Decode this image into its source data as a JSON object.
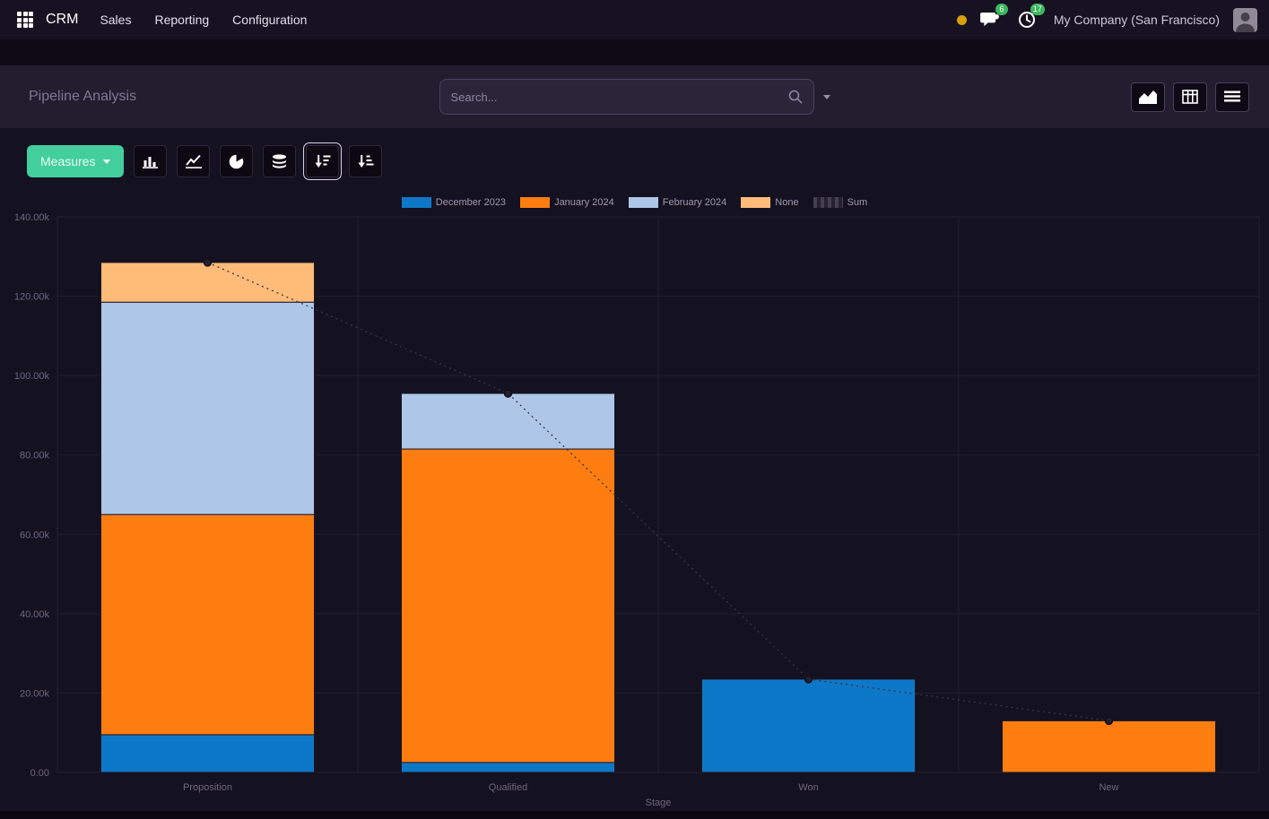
{
  "navbar": {
    "brand": "CRM",
    "menu_items": [
      "Sales",
      "Reporting",
      "Configuration"
    ],
    "messages_badge": "6",
    "activities_badge": "17",
    "company": "My Company (San Francisco)"
  },
  "control_panel": {
    "title": "Pipeline Analysis",
    "search_placeholder": "Search...",
    "view_switchers": [
      "graph",
      "pivot",
      "list"
    ]
  },
  "toolbar": {
    "measures_label": "Measures",
    "buttons": [
      "bar-chart",
      "line-chart",
      "pie-chart",
      "stacked",
      "sort-descending",
      "sort-ascending"
    ],
    "active_button": "sort-descending"
  },
  "chart_data": {
    "type": "bar",
    "stacked": true,
    "title": "",
    "xlabel": "Stage",
    "ylabel": "",
    "categories": [
      "Proposition",
      "Qualified",
      "Won",
      "New"
    ],
    "series": [
      {
        "name": "December 2023",
        "color": "#0e78c8",
        "values": [
          9500,
          2500,
          23500,
          0
        ]
      },
      {
        "name": "January 2024",
        "color": "#fe7d10",
        "values": [
          55500,
          79000,
          0,
          13000
        ]
      },
      {
        "name": "February 2024",
        "color": "#aec7e8",
        "values": [
          53500,
          14000,
          0,
          0
        ]
      },
      {
        "name": "None",
        "color": "#ffbb78",
        "values": [
          10000,
          0,
          0,
          0
        ]
      }
    ],
    "sum_series": {
      "name": "Sum",
      "color": "#45404f",
      "values": [
        128500,
        95500,
        23500,
        13000
      ]
    },
    "ylim": [
      0,
      140000
    ],
    "y_ticks": [
      {
        "value": 0,
        "label": "0.00"
      },
      {
        "value": 20000,
        "label": "20.00k"
      },
      {
        "value": 40000,
        "label": "40.00k"
      },
      {
        "value": 60000,
        "label": "60.00k"
      },
      {
        "value": 80000,
        "label": "80.00k"
      },
      {
        "value": 100000,
        "label": "100.00k"
      },
      {
        "value": 120000,
        "label": "120.00k"
      },
      {
        "value": 140000,
        "label": "140.00k"
      }
    ],
    "legend_position": "top",
    "grid": true
  },
  "colors": {
    "accent_green": "#42cf9d",
    "badge_green": "#3db85f",
    "status_yellow": "#d99e0b"
  }
}
